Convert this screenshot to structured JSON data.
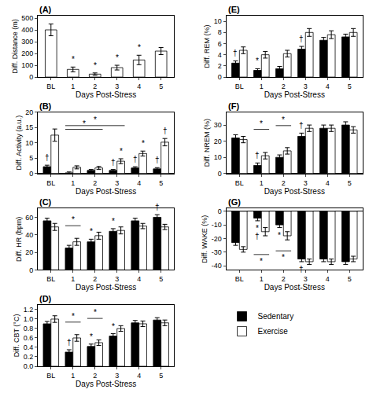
{
  "chart_data": [
    {
      "type": "bar",
      "title": "(A)",
      "xlabel": "Days Post-Stress",
      "ylabel": "Diff. Distance (m)",
      "categories": [
        "BL",
        "1",
        "2",
        "3",
        "4",
        "5"
      ],
      "series": [
        {
          "name": "Exercise",
          "color": "#ffffff",
          "values": [
            400,
            65,
            25,
            80,
            145,
            220
          ],
          "errors": [
            50,
            20,
            10,
            20,
            40,
            30
          ]
        }
      ],
      "ylim": [
        0,
        520
      ],
      "yticks": [
        0,
        100,
        200,
        300,
        400,
        500
      ],
      "grid": false,
      "annotations": [
        {
          "text": "*",
          "category": "1",
          "series": "Exercise"
        },
        {
          "text": "*",
          "category": "2",
          "series": "Exercise"
        },
        {
          "text": "*",
          "category": "3",
          "series": "Exercise"
        },
        {
          "text": "*",
          "category": "4",
          "series": "Exercise"
        }
      ]
    },
    {
      "type": "bar",
      "title": "(B)",
      "xlabel": "Days Post-Stress",
      "ylabel": "Diff. Activity (a.u.)",
      "categories": [
        "BL",
        "1",
        "2",
        "3",
        "4",
        "5"
      ],
      "series": [
        {
          "name": "Sedentary",
          "color": "#000000",
          "values": [
            2.2,
            0.2,
            1.0,
            1.0,
            1.8,
            1.5
          ],
          "errors": [
            0.5,
            0.3,
            0.3,
            0.3,
            0.4,
            0.4
          ]
        },
        {
          "name": "Exercise",
          "color": "#ffffff",
          "values": [
            12.5,
            2.0,
            1.8,
            4.0,
            6.5,
            10.2
          ],
          "errors": [
            2.0,
            0.5,
            0.5,
            0.8,
            0.8,
            1.2
          ]
        }
      ],
      "ylim": [
        0,
        20
      ],
      "yticks": [
        0,
        5,
        10,
        15,
        20
      ],
      "grid": false,
      "annotations": [
        {
          "text": "*",
          "category": "3",
          "series": "Exercise"
        },
        {
          "text": "*",
          "category": "4",
          "series": "Exercise"
        },
        {
          "text": "†",
          "category": "BL",
          "series": "Sedentary"
        },
        {
          "text": "†",
          "category": "3",
          "series": "Sedentary"
        },
        {
          "text": "†",
          "category": "4",
          "series": "Sedentary"
        },
        {
          "text": "†",
          "category": "5",
          "series": "Sedentary"
        },
        {
          "text": "†",
          "category": "5",
          "series": "Exercise"
        },
        {
          "text": "*",
          "from": "1",
          "to": "2"
        },
        {
          "text": "*",
          "from": "1",
          "to": "3"
        }
      ]
    },
    {
      "type": "bar",
      "title": "(C)",
      "xlabel": "Days Post-Stress",
      "ylabel": "Diff. HR (bpm)",
      "categories": [
        "BL",
        "1",
        "2",
        "3",
        "4",
        "5"
      ],
      "series": [
        {
          "name": "Sedentary",
          "color": "#000000",
          "values": [
            56,
            25,
            32,
            44,
            56,
            60
          ],
          "errors": [
            3,
            3,
            3,
            3,
            3,
            3
          ]
        },
        {
          "name": "Exercise",
          "color": "#ffffff",
          "values": [
            49,
            32,
            39,
            45,
            50,
            49
          ],
          "errors": [
            4,
            4,
            4,
            4,
            3,
            3
          ]
        }
      ],
      "ylim": [
        0,
        70
      ],
      "yticks": [
        0,
        20,
        40,
        60
      ],
      "grid": false,
      "annotations": [
        {
          "text": "*",
          "category": "2",
          "series": "Sedentary"
        },
        {
          "text": "*",
          "category": "3",
          "series": "Sedentary"
        },
        {
          "text": "†",
          "category": "5",
          "series": "Sedentary"
        },
        {
          "text": "*",
          "from": "1",
          "to": "1"
        }
      ]
    },
    {
      "type": "bar",
      "title": "(D)",
      "xlabel": "Days Post-Stress",
      "ylabel": "Diff. CBT (°C)",
      "categories": [
        "BL",
        "1",
        "2",
        "3",
        "4",
        "5"
      ],
      "series": [
        {
          "name": "Sedentary",
          "color": "#000000",
          "values": [
            0.9,
            0.3,
            0.42,
            0.64,
            0.92,
            0.98
          ],
          "errors": [
            0.05,
            0.05,
            0.05,
            0.05,
            0.05,
            0.05
          ]
        },
        {
          "name": "Exercise",
          "color": "#ffffff",
          "values": [
            1.0,
            0.6,
            0.5,
            0.8,
            0.9,
            0.92
          ],
          "errors": [
            0.07,
            0.07,
            0.06,
            0.06,
            0.06,
            0.06
          ]
        }
      ],
      "ylim": [
        0.0,
        1.3
      ],
      "yticks": [
        {
          "value": 0,
          "label": "0.0"
        },
        0.2,
        0.4,
        0.6,
        0.8,
        {
          "value": 1,
          "label": "1.0"
        },
        1.2
      ],
      "grid": false,
      "annotations": [
        {
          "text": "*",
          "category": "2",
          "series": "Sedentary"
        },
        {
          "text": "*",
          "category": "3",
          "series": "Sedentary"
        },
        {
          "text": "†",
          "category": "1",
          "series": "Sedentary"
        },
        {
          "text": "*",
          "from": "1",
          "to": "1"
        },
        {
          "text": "*",
          "from": "2",
          "to": "2"
        }
      ]
    },
    {
      "type": "bar",
      "title": "(E)",
      "xlabel": "Days Post-Stress",
      "ylabel": "Diff. REM (%)",
      "categories": [
        "BL",
        "1",
        "2",
        "3",
        "4",
        "5"
      ],
      "series": [
        {
          "name": "Sedentary",
          "color": "#000000",
          "values": [
            2.5,
            1.2,
            1.5,
            5.0,
            6.6,
            7.2
          ],
          "errors": [
            0.4,
            0.3,
            0.4,
            0.5,
            0.5,
            0.5
          ]
        },
        {
          "name": "Exercise",
          "color": "#ffffff",
          "values": [
            4.8,
            4.0,
            4.2,
            8.0,
            7.6,
            8.0
          ],
          "errors": [
            0.6,
            0.6,
            0.6,
            0.7,
            0.7,
            0.7
          ]
        }
      ],
      "ylim": [
        0,
        11
      ],
      "yticks": [
        0,
        2,
        4,
        6,
        8,
        10
      ],
      "grid": false,
      "annotations": [
        {
          "text": "*",
          "category": "1",
          "series": "Sedentary"
        },
        {
          "text": "†",
          "category": "BL",
          "series": "Sedentary"
        },
        {
          "text": "†",
          "category": "3",
          "series": "Sedentary"
        }
      ]
    },
    {
      "type": "bar",
      "title": "(F)",
      "xlabel": "Days Post-Stress",
      "ylabel": "Diff. NREM (%)",
      "categories": [
        "BL",
        "1",
        "2",
        "3",
        "4",
        "5"
      ],
      "series": [
        {
          "name": "Sedentary",
          "color": "#000000",
          "values": [
            22,
            5,
            10,
            23,
            28,
            30
          ],
          "errors": [
            2,
            1.5,
            1.5,
            2,
            2,
            2
          ]
        },
        {
          "name": "Exercise",
          "color": "#ffffff",
          "values": [
            21,
            11,
            14,
            28,
            28,
            27
          ],
          "errors": [
            2,
            2,
            2,
            2,
            2,
            2
          ]
        }
      ],
      "ylim": [
        0,
        38
      ],
      "yticks": [
        0,
        10,
        20,
        30
      ],
      "grid": false,
      "annotations": [
        {
          "text": "†",
          "category": "1",
          "series": "Sedentary"
        },
        {
          "text": "†",
          "category": "3",
          "series": "Sedentary"
        },
        {
          "text": "*",
          "from": "1",
          "to": "1"
        },
        {
          "text": "*",
          "from": "2",
          "to": "2"
        }
      ]
    },
    {
      "type": "bar",
      "title": "(G)",
      "xlabel": "Days Post-Stress",
      "ylabel": "Diff. WAKE (%)",
      "categories": [
        "BL",
        "1",
        "2",
        "3",
        "4",
        "5"
      ],
      "series": [
        {
          "name": "Sedentary",
          "color": "#000000",
          "values": [
            -23,
            -5,
            -10,
            -35,
            -35,
            -37
          ],
          "errors": [
            2,
            2,
            2,
            2,
            2,
            2
          ]
        },
        {
          "name": "Exercise",
          "color": "#ffffff",
          "values": [
            -28,
            -15,
            -18,
            -37,
            -37,
            -35
          ],
          "errors": [
            2,
            3,
            3,
            2,
            2,
            2
          ]
        }
      ],
      "ylim": [
        -43,
        2
      ],
      "yticks": [
        -40,
        -30,
        -20,
        -10,
        0
      ],
      "grid": false,
      "legend": "lower right",
      "annotations": [
        {
          "text": "*",
          "category": "1",
          "series": "Sedentary"
        },
        {
          "text": "*",
          "category": "2",
          "series": "Sedentary"
        },
        {
          "text": "†",
          "category": "1",
          "series": "Sedentary"
        },
        {
          "text": "†",
          "category": "3",
          "series": "Sedentary"
        },
        {
          "text": "*",
          "from": "1",
          "to": "1"
        },
        {
          "text": "*",
          "from": "2",
          "to": "2"
        }
      ]
    }
  ]
}
